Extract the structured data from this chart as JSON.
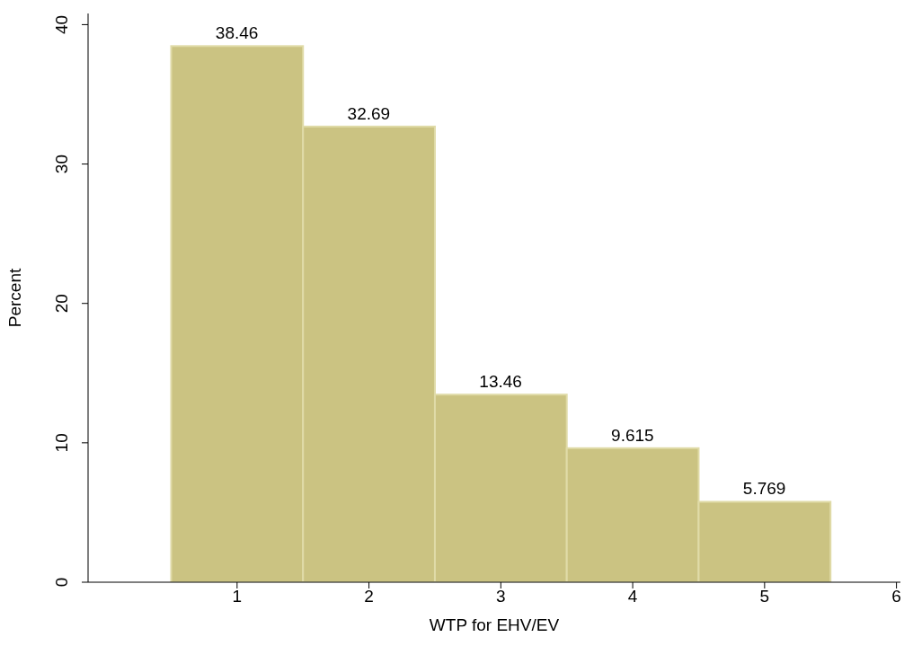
{
  "chart_data": {
    "type": "histogram",
    "xlabel": "WTP for EHV/EV",
    "ylabel": "Percent",
    "bins": [
      0.5,
      1.5,
      2.5,
      3.5,
      4.5,
      5.5
    ],
    "values": [
      38.46,
      32.69,
      13.46,
      9.615,
      5.769
    ],
    "color": "#cbc382",
    "data_labels": true,
    "xlim": [
      -0.13,
      6.03
    ],
    "xticks": [
      1,
      2,
      3,
      4,
      5,
      6
    ],
    "ylim": [
      0,
      40.8
    ],
    "yticks": [
      0,
      10,
      20,
      30,
      40
    ],
    "grid": false
  }
}
